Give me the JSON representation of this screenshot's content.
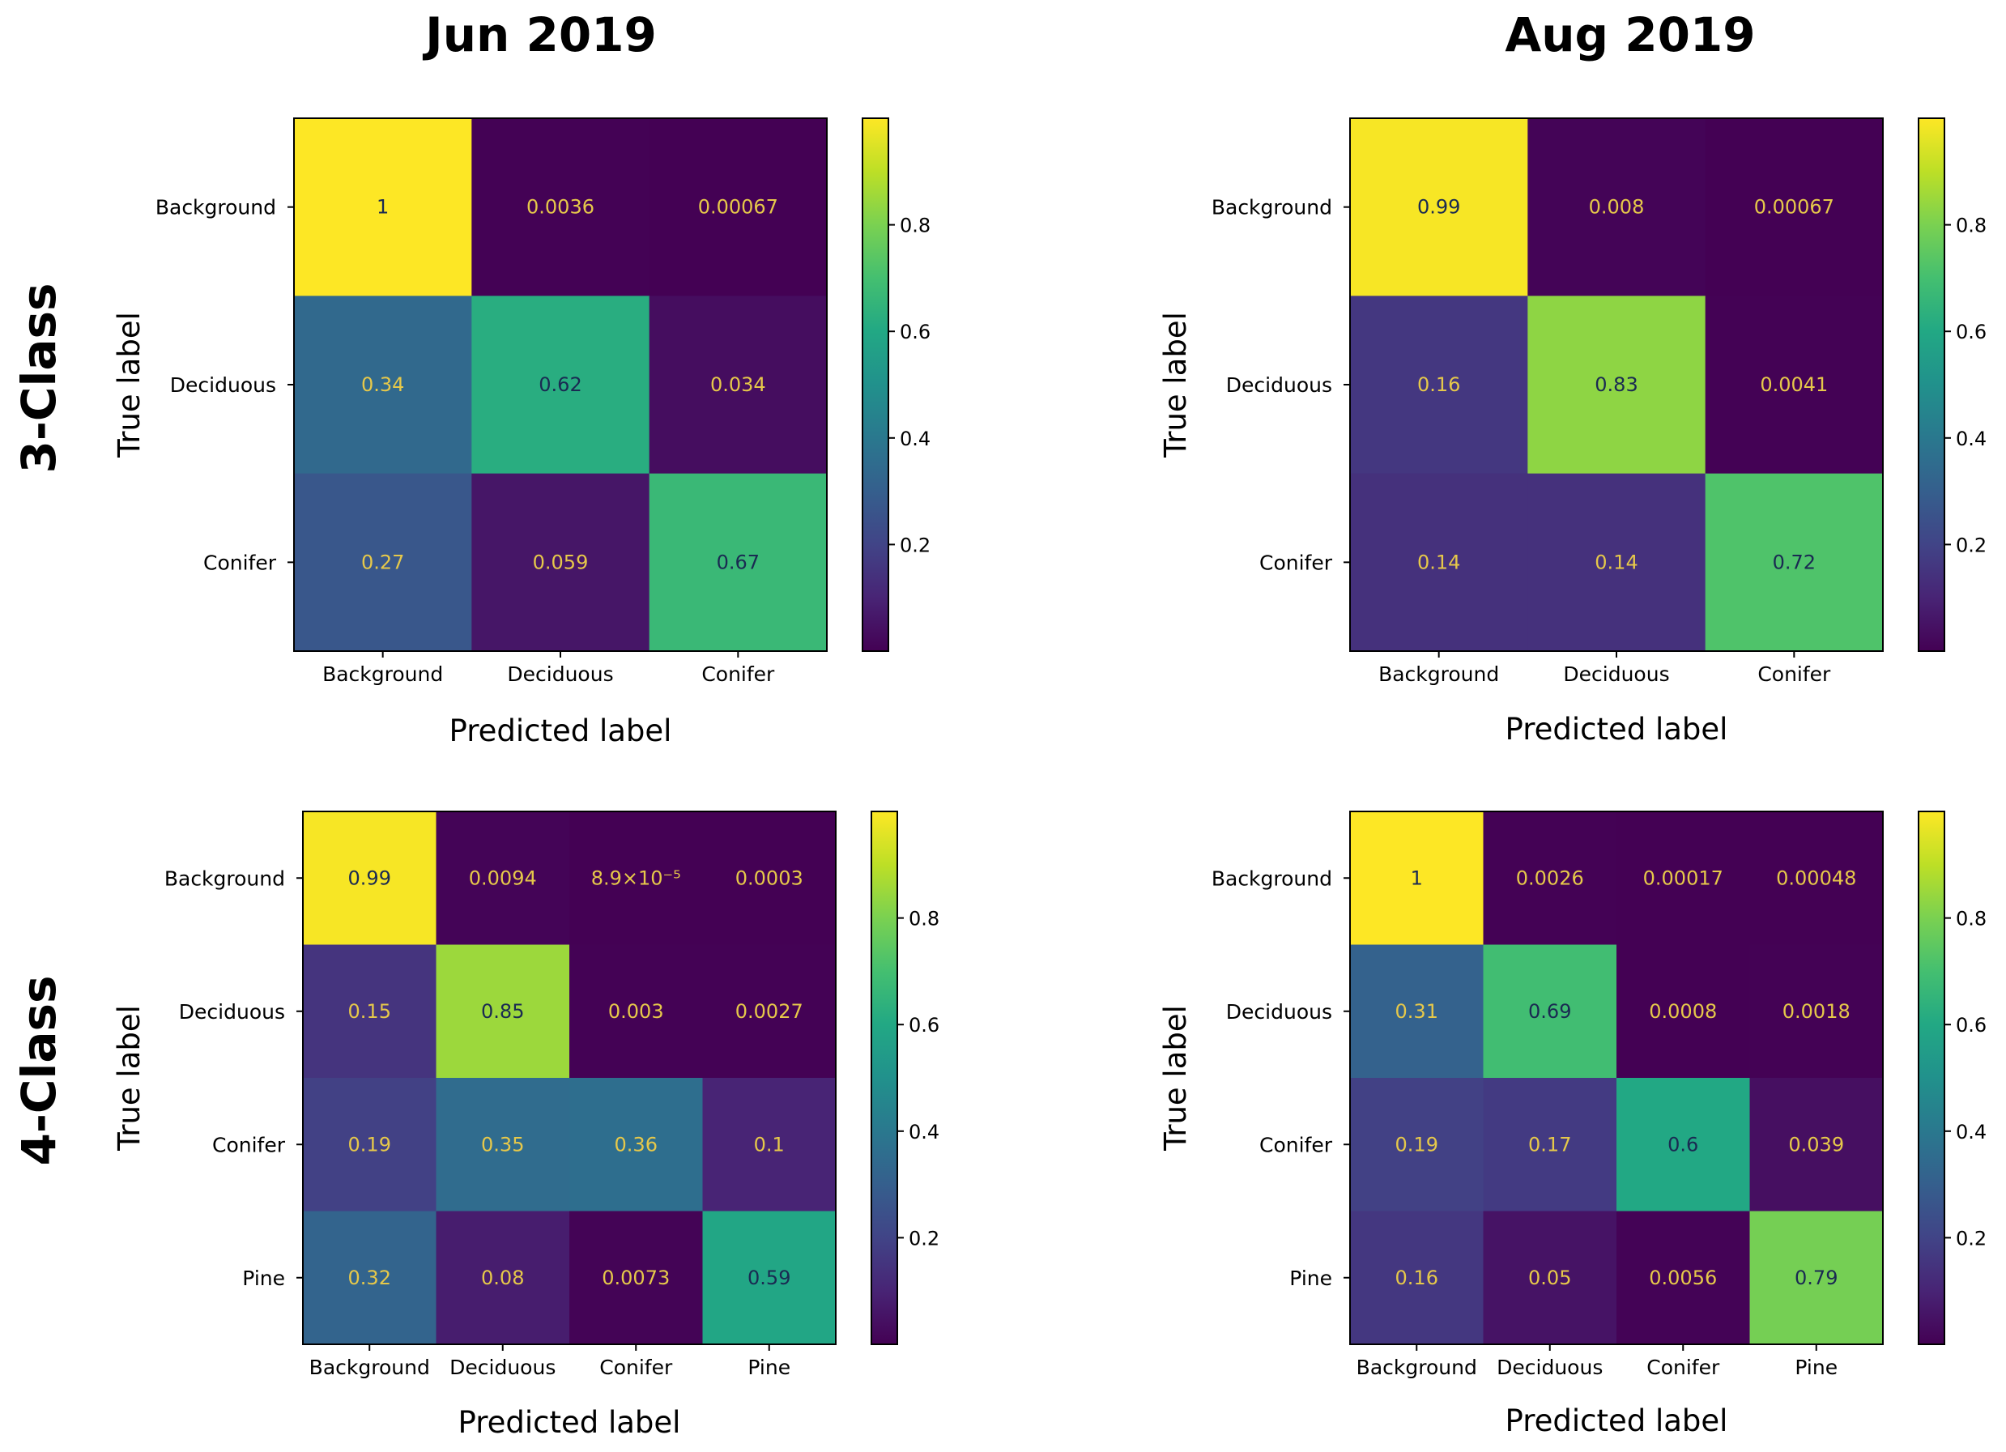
{
  "column_titles": [
    "Jun 2019",
    "Aug 2019"
  ],
  "row_titles": [
    "3-Class",
    "4-Class"
  ],
  "colors": {
    "text_light": "#e6c84a",
    "text_dark": "#1a2a52"
  },
  "chart_data": [
    {
      "type": "heatmap",
      "id": "jun-3class",
      "xlabel": "Predicted label",
      "ylabel": "True label",
      "categories": [
        "Background",
        "Deciduous",
        "Conifer"
      ],
      "matrix": [
        [
          1,
          0.0036,
          0.00067
        ],
        [
          0.34,
          0.62,
          0.034
        ],
        [
          0.27,
          0.059,
          0.67
        ]
      ],
      "labels": [
        [
          "1",
          "0.0036",
          "0.00067"
        ],
        [
          "0.34",
          "0.62",
          "0.034"
        ],
        [
          "0.27",
          "0.059",
          "0.67"
        ]
      ],
      "colorbar_ticks": [
        0.2,
        0.4,
        0.6,
        0.8
      ],
      "vmin": 0.0,
      "vmax": 1.0
    },
    {
      "type": "heatmap",
      "id": "aug-3class",
      "xlabel": "Predicted label",
      "ylabel": "True label",
      "categories": [
        "Background",
        "Deciduous",
        "Conifer"
      ],
      "matrix": [
        [
          0.99,
          0.008,
          0.00067
        ],
        [
          0.16,
          0.83,
          0.0041
        ],
        [
          0.14,
          0.14,
          0.72
        ]
      ],
      "labels": [
        [
          "0.99",
          "0.008",
          "0.00067"
        ],
        [
          "0.16",
          "0.83",
          "0.0041"
        ],
        [
          "0.14",
          "0.14",
          "0.72"
        ]
      ],
      "colorbar_ticks": [
        0.2,
        0.4,
        0.6,
        0.8
      ],
      "vmin": 0.0,
      "vmax": 1.0
    },
    {
      "type": "heatmap",
      "id": "jun-4class",
      "xlabel": "Predicted label",
      "ylabel": "True label",
      "categories": [
        "Background",
        "Deciduous",
        "Conifer",
        "Pine"
      ],
      "matrix": [
        [
          0.99,
          0.0094,
          8.9e-05,
          0.0003
        ],
        [
          0.15,
          0.85,
          0.003,
          0.0027
        ],
        [
          0.19,
          0.35,
          0.36,
          0.1
        ],
        [
          0.32,
          0.08,
          0.0073,
          0.59
        ]
      ],
      "labels": [
        [
          "0.99",
          "0.0094",
          "8.9×10⁻⁵",
          "0.0003"
        ],
        [
          "0.15",
          "0.85",
          "0.003",
          "0.0027"
        ],
        [
          "0.19",
          "0.35",
          "0.36",
          "0.1"
        ],
        [
          "0.32",
          "0.08",
          "0.0073",
          "0.59"
        ]
      ],
      "colorbar_ticks": [
        0.2,
        0.4,
        0.6,
        0.8
      ],
      "vmin": 0.0,
      "vmax": 1.0
    },
    {
      "type": "heatmap",
      "id": "aug-4class",
      "xlabel": "Predicted label",
      "ylabel": "True label",
      "categories": [
        "Background",
        "Deciduous",
        "Conifer",
        "Pine"
      ],
      "matrix": [
        [
          1,
          0.0026,
          0.00017,
          0.00048
        ],
        [
          0.31,
          0.69,
          0.0008,
          0.0018
        ],
        [
          0.19,
          0.17,
          0.6,
          0.039
        ],
        [
          0.16,
          0.05,
          0.0056,
          0.79
        ]
      ],
      "labels": [
        [
          "1",
          "0.0026",
          "0.00017",
          "0.00048"
        ],
        [
          "0.31",
          "0.69",
          "0.0008",
          "0.0018"
        ],
        [
          "0.19",
          "0.17",
          "0.6",
          "0.039"
        ],
        [
          "0.16",
          "0.05",
          "0.0056",
          "0.79"
        ]
      ],
      "colorbar_ticks": [
        0.2,
        0.4,
        0.6,
        0.8
      ],
      "vmin": 0.0,
      "vmax": 1.0
    }
  ]
}
